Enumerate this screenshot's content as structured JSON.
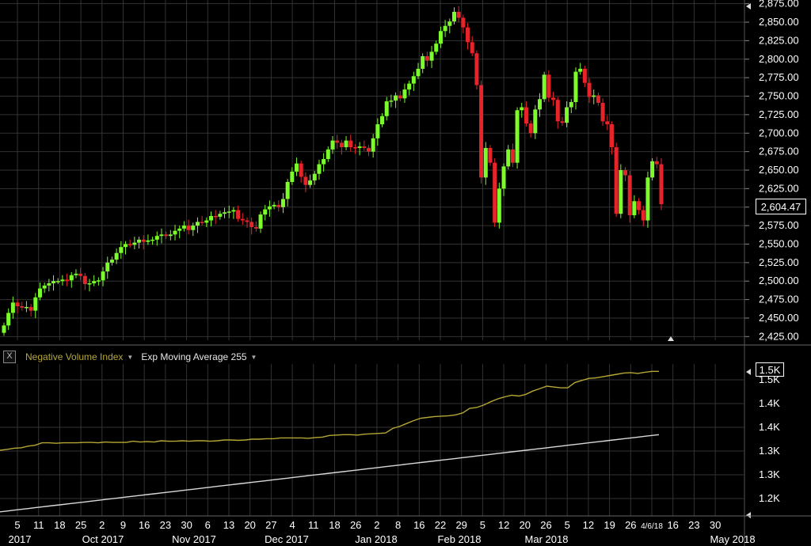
{
  "legend": {
    "close_label": "X",
    "nvi_label": "Negative Volume Index",
    "ema_label": "Exp Moving Average 255"
  },
  "colors": {
    "up": "#7CFC2A",
    "down": "#E8242B",
    "nvi": "#B5A733",
    "ema": "#D8D8D8",
    "grid": "#333333",
    "background": "#000000"
  },
  "price_tag": "2,604.47",
  "volume_tag": "1.5K",
  "last_date_label": "4/6/18",
  "chart_data": [
    {
      "type": "candlestick",
      "title": "",
      "ylim": [
        2420,
        2880
      ],
      "y_ticks": [
        "2,875.00",
        "2,850.00",
        "2,825.00",
        "2,800.00",
        "2,775.00",
        "2,750.00",
        "2,725.00",
        "2,700.00",
        "2,675.00",
        "2,650.00",
        "2,625.00",
        "2,600.00",
        "2,575.00",
        "2,550.00",
        "2,525.00",
        "2,500.00",
        "2,475.00",
        "2,450.00",
        "2,425.00"
      ],
      "x_ticks": [
        "5",
        "11",
        "18",
        "25",
        "2",
        "9",
        "16",
        "23",
        "30",
        "6",
        "13",
        "20",
        "27",
        "4",
        "11",
        "18",
        "26",
        "2",
        "8",
        "16",
        "22",
        "29",
        "5",
        "12",
        "20",
        "26",
        "5",
        "12",
        "19",
        "26",
        "4/6/18",
        "16",
        "23",
        "30"
      ],
      "x_month_labels": [
        "2017",
        "Oct 2017",
        "Nov 2017",
        "Dec 2017",
        "Jan 2018",
        "Feb 2018",
        "Mar 2018",
        "May 2018"
      ],
      "series_close": [
        2440,
        2457,
        2471,
        2466,
        2464,
        2465,
        2460,
        2478,
        2490,
        2494,
        2497,
        2500,
        2500,
        2502,
        2501,
        2508,
        2510,
        2507,
        2496,
        2497,
        2500,
        2501,
        2513,
        2525,
        2529,
        2538,
        2546,
        2550,
        2549,
        2552,
        2556,
        2553,
        2555,
        2556,
        2561,
        2563,
        2561,
        2563,
        2568,
        2571,
        2575,
        2569,
        2575,
        2580,
        2579,
        2582,
        2588,
        2587,
        2591,
        2593,
        2594,
        2596,
        2584,
        2582,
        2580,
        2573,
        2571,
        2590,
        2597,
        2601,
        2603,
        2600,
        2611,
        2634,
        2648,
        2659,
        2641,
        2630,
        2636,
        2645,
        2658,
        2665,
        2678,
        2690,
        2687,
        2681,
        2690,
        2681,
        2680,
        2682,
        2680,
        2675,
        2693,
        2712,
        2723,
        2743,
        2744,
        2751,
        2747,
        2759,
        2767,
        2777,
        2787,
        2804,
        2798,
        2810,
        2821,
        2838,
        2845,
        2851,
        2864,
        2856,
        2843,
        2823,
        2808,
        2765,
        2640,
        2680,
        2660,
        2579,
        2625,
        2655,
        2678,
        2660,
        2731,
        2735,
        2713,
        2700,
        2732,
        2746,
        2779,
        2748,
        2745,
        2716,
        2714,
        2735,
        2742,
        2783,
        2787,
        2768,
        2749,
        2751,
        2741,
        2716,
        2712,
        2681,
        2591,
        2650,
        2643,
        2589,
        2608,
        2596,
        2582,
        2640,
        2662,
        2658,
        2604
      ],
      "series_open": [
        2430,
        2440,
        2457,
        2471,
        2466,
        2464,
        2465,
        2460,
        2478,
        2490,
        2494,
        2497,
        2500,
        2500,
        2502,
        2501,
        2508,
        2510,
        2507,
        2496,
        2497,
        2500,
        2501,
        2513,
        2525,
        2529,
        2538,
        2546,
        2550,
        2549,
        2552,
        2556,
        2553,
        2555,
        2556,
        2561,
        2563,
        2561,
        2563,
        2568,
        2571,
        2575,
        2569,
        2575,
        2580,
        2579,
        2582,
        2588,
        2587,
        2591,
        2593,
        2594,
        2596,
        2584,
        2582,
        2580,
        2573,
        2571,
        2590,
        2597,
        2601,
        2603,
        2600,
        2611,
        2634,
        2648,
        2659,
        2641,
        2630,
        2636,
        2645,
        2658,
        2665,
        2678,
        2690,
        2687,
        2681,
        2690,
        2681,
        2680,
        2682,
        2680,
        2675,
        2693,
        2712,
        2723,
        2743,
        2744,
        2751,
        2747,
        2759,
        2767,
        2777,
        2787,
        2804,
        2798,
        2810,
        2821,
        2838,
        2845,
        2851,
        2864,
        2856,
        2843,
        2823,
        2808,
        2765,
        2640,
        2680,
        2660,
        2579,
        2625,
        2655,
        2678,
        2660,
        2731,
        2735,
        2713,
        2700,
        2732,
        2746,
        2779,
        2748,
        2745,
        2716,
        2714,
        2735,
        2742,
        2783,
        2787,
        2768,
        2749,
        2751,
        2741,
        2716,
        2712,
        2681,
        2591,
        2650,
        2643,
        2589,
        2608,
        2596,
        2582,
        2640,
        2662,
        2658
      ]
    },
    {
      "type": "line",
      "title": "",
      "y_ticks": [
        "1.5K",
        "1.4K",
        "1.4K",
        "1.3K",
        "1.3K",
        "1.2K"
      ],
      "series": [
        {
          "name": "Negative Volume Index",
          "values": [
            1330,
            1332,
            1335,
            1336,
            1340,
            1342,
            1348,
            1348,
            1347,
            1348,
            1348,
            1348,
            1349,
            1349,
            1348,
            1350,
            1349,
            1349,
            1349,
            1352,
            1350,
            1351,
            1350,
            1353,
            1352,
            1352,
            1353,
            1352,
            1353,
            1353,
            1352,
            1353,
            1355,
            1355,
            1354,
            1355,
            1357,
            1357,
            1358,
            1358,
            1360,
            1360,
            1360,
            1360,
            1359,
            1361,
            1362,
            1366,
            1367,
            1368,
            1368,
            1367,
            1369,
            1370,
            1371,
            1372,
            1383,
            1388,
            1395,
            1402,
            1408,
            1410,
            1412,
            1413,
            1414,
            1416,
            1421,
            1432,
            1434,
            1440,
            1448,
            1455,
            1460,
            1464,
            1462,
            1466,
            1474,
            1480,
            1486,
            1484,
            1482,
            1482,
            1495,
            1500,
            1505,
            1506,
            1509,
            1512,
            1515,
            1518,
            1519,
            1517,
            1520,
            1522,
            1522
          ]
        },
        {
          "name": "Exp Moving Average 255",
          "values": [
            1180,
            1182,
            1184,
            1186,
            1188,
            1190,
            1192,
            1194,
            1196,
            1198,
            1200,
            1202,
            1204,
            1206,
            1208,
            1210,
            1212,
            1214,
            1216,
            1218,
            1220,
            1222,
            1224,
            1226,
            1228,
            1230,
            1232,
            1234,
            1236,
            1238,
            1240,
            1242,
            1244,
            1246,
            1248,
            1250,
            1252,
            1254,
            1256,
            1258,
            1260,
            1262,
            1264,
            1266,
            1268,
            1270,
            1272,
            1274,
            1276,
            1278,
            1280,
            1282,
            1284,
            1286,
            1288,
            1290,
            1292,
            1294,
            1296,
            1298,
            1300,
            1302,
            1304,
            1306,
            1308,
            1310,
            1312,
            1314,
            1316,
            1318,
            1320,
            1322,
            1324,
            1326,
            1328,
            1330,
            1332,
            1334,
            1336,
            1338,
            1340,
            1342,
            1344,
            1346,
            1348,
            1350,
            1352,
            1354,
            1356,
            1358,
            1360,
            1362,
            1364,
            1366,
            1368
          ]
        }
      ]
    }
  ]
}
